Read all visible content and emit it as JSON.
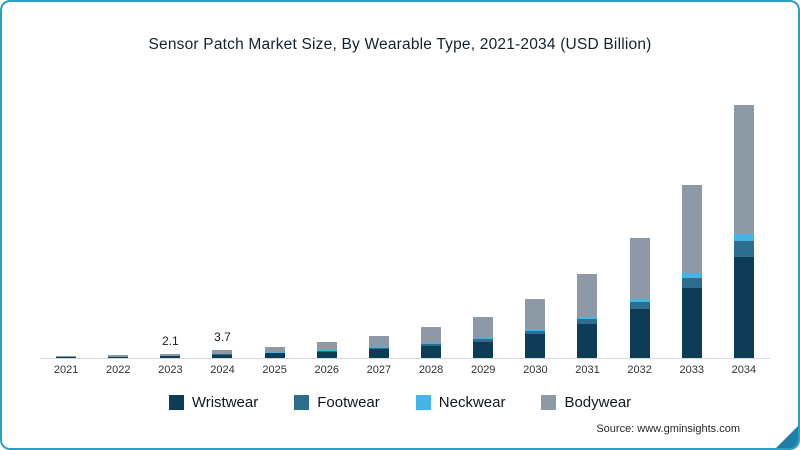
{
  "title": "Sensor Patch Market Size, By Wearable Type, 2021-2034  (USD Billion)",
  "source": "Source: www.gminsights.com",
  "colors": {
    "frame_border": "#2d9fc4",
    "corner_accent": "#1d7fa3",
    "axis_line": "#d6d6d6"
  },
  "chart_data": {
    "type": "bar",
    "stacked": true,
    "title": "Sensor Patch Market Size, By Wearable Type, 2021-2034  (USD Billion)",
    "xlabel": "",
    "ylabel": "USD Billion",
    "ylim": [
      0,
      125
    ],
    "grid": false,
    "legend_position": "bottom",
    "categories": [
      "2021",
      "2022",
      "2023",
      "2024",
      "2025",
      "2026",
      "2027",
      "2028",
      "2029",
      "2030",
      "2031",
      "2032",
      "2033",
      "2034"
    ],
    "series": [
      {
        "name": "Wristwear",
        "color": "#0d3d56",
        "values": [
          0.4,
          0.6,
          0.9,
          1.5,
          2.2,
          3.0,
          4.2,
          5.8,
          7.8,
          11.2,
          16.0,
          23.0,
          33.0,
          48.0
        ]
      },
      {
        "name": "Footwear",
        "color": "#2e6d8e",
        "values": [
          0.05,
          0.08,
          0.12,
          0.22,
          0.32,
          0.45,
          0.63,
          0.87,
          1.17,
          1.7,
          2.4,
          3.4,
          4.9,
          7.2
        ]
      },
      {
        "name": "Neckwear",
        "color": "#45b4e6",
        "values": [
          0.03,
          0.04,
          0.06,
          0.11,
          0.16,
          0.23,
          0.32,
          0.44,
          0.59,
          0.85,
          1.2,
          1.7,
          2.5,
          3.6
        ]
      },
      {
        "name": "Bodywear",
        "color": "#8d99a5",
        "values": [
          0.42,
          0.68,
          1.02,
          1.87,
          2.62,
          3.82,
          5.35,
          7.39,
          9.94,
          14.25,
          20.4,
          28.9,
          41.6,
          61.2
        ]
      }
    ],
    "totals": [
      0.9,
      1.4,
      2.1,
      3.7,
      5.3,
      7.5,
      10.5,
      14.5,
      19.5,
      28.0,
      40.0,
      57.0,
      82.0,
      120.0
    ],
    "data_labels": {
      "2023": "2.1",
      "2024": "3.7"
    }
  }
}
